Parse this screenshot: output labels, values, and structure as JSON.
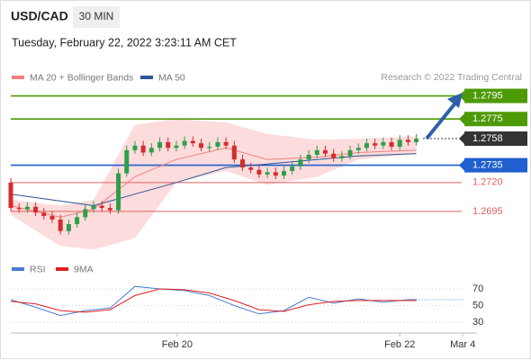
{
  "header": {
    "symbol": "USD/CAD",
    "timeframe": "30 MIN",
    "timestamp": "Tuesday, February 22, 2022 3:23:11 AM CET",
    "source": "Research © 2022 Trading Central"
  },
  "chart_data": [
    {
      "type": "candlestick",
      "up_color": "#2e9e4a",
      "down_color": "#d62c2c",
      "xlim": [
        0,
        56
      ],
      "xticks": [
        {
          "value": 20.1,
          "label": "Feb 20"
        },
        {
          "value": 47,
          "label": "Feb 22"
        },
        {
          "value": 54.6,
          "label": "Mar 4"
        }
      ],
      "ylim": [
        1.2656,
        1.2804
      ],
      "open": [
        1.272,
        1.2698,
        1.2697,
        1.2699,
        1.2694,
        1.2691,
        1.2688,
        1.2678,
        1.2684,
        1.269,
        1.2697,
        1.27,
        1.2698,
        1.2696,
        1.2728,
        1.2748,
        1.2752,
        1.2746,
        1.275,
        1.2755,
        1.275,
        1.2752,
        1.2756,
        1.2754,
        1.275,
        1.2751,
        1.2755,
        1.2752,
        1.274,
        1.2733,
        1.2731,
        1.2727,
        1.2729,
        1.2726,
        1.273,
        1.2734,
        1.274,
        1.2744,
        1.2748,
        1.2745,
        1.2741,
        1.2743,
        1.2748,
        1.275,
        1.2754,
        1.2752,
        1.2755,
        1.2751,
        1.2757,
        1.2755
      ],
      "high": [
        1.2724,
        1.2702,
        1.2703,
        1.2703,
        1.2698,
        1.2695,
        1.2692,
        1.2688,
        1.2694,
        1.2701,
        1.2704,
        1.2704,
        1.2702,
        1.2732,
        1.2752,
        1.2756,
        1.2756,
        1.2754,
        1.2759,
        1.2759,
        1.2756,
        1.276,
        1.276,
        1.2758,
        1.2755,
        1.2759,
        1.2759,
        1.2756,
        1.2744,
        1.2737,
        1.2735,
        1.2733,
        1.2733,
        1.2734,
        1.2738,
        1.2744,
        1.2748,
        1.2752,
        1.2752,
        1.2749,
        1.2747,
        1.2752,
        1.2754,
        1.2758,
        1.2758,
        1.2759,
        1.2759,
        1.2761,
        1.2761,
        1.2762
      ],
      "low": [
        1.2695,
        1.2694,
        1.2694,
        1.2691,
        1.2688,
        1.2685,
        1.2675,
        1.2675,
        1.2681,
        1.2687,
        1.2694,
        1.2695,
        1.2693,
        1.2693,
        1.2725,
        1.2745,
        1.2743,
        1.2743,
        1.2747,
        1.2747,
        1.2747,
        1.2749,
        1.2751,
        1.2747,
        1.2747,
        1.2748,
        1.2749,
        1.2737,
        1.273,
        1.2728,
        1.2724,
        1.2724,
        1.2723,
        1.2723,
        1.2727,
        1.2731,
        1.2737,
        1.2741,
        1.2742,
        1.2738,
        1.2738,
        1.274,
        1.2745,
        1.2747,
        1.2749,
        1.2749,
        1.2748,
        1.2748,
        1.2752,
        1.2752
      ],
      "close": [
        1.2698,
        1.2697,
        1.2699,
        1.2694,
        1.2691,
        1.2688,
        1.2678,
        1.2684,
        1.269,
        1.2697,
        1.27,
        1.2698,
        1.2696,
        1.2728,
        1.2748,
        1.2752,
        1.2746,
        1.275,
        1.2755,
        1.275,
        1.2752,
        1.2756,
        1.2754,
        1.275,
        1.2751,
        1.2755,
        1.2752,
        1.274,
        1.2733,
        1.2731,
        1.2727,
        1.2729,
        1.2726,
        1.273,
        1.2734,
        1.274,
        1.2744,
        1.2748,
        1.2745,
        1.2741,
        1.2743,
        1.2748,
        1.275,
        1.2754,
        1.2752,
        1.2755,
        1.2751,
        1.2757,
        1.2755,
        1.2758
      ],
      "band": {
        "color": "#fcdcdc",
        "x": [
          0,
          6,
          10,
          15,
          20,
          26,
          31,
          37,
          42,
          49
        ],
        "upper": [
          1.2705,
          1.27,
          1.2705,
          1.277,
          1.2775,
          1.2772,
          1.2762,
          1.2757,
          1.2758,
          1.276
        ],
        "lower": [
          1.2692,
          1.2665,
          1.2662,
          1.2672,
          1.272,
          1.273,
          1.2718,
          1.2725,
          1.274,
          1.2745
        ]
      },
      "series": [
        {
          "name": "MA 20 + Bollinger Bands",
          "color": "#f08080",
          "x": [
            0,
            6,
            10,
            15,
            20,
            26,
            31,
            37,
            42,
            49
          ],
          "values": [
            1.27,
            1.269,
            1.2697,
            1.2725,
            1.274,
            1.275,
            1.274,
            1.2742,
            1.2746,
            1.2748
          ]
        },
        {
          "name": "MA 50",
          "color": "#2f5597",
          "x": [
            0,
            6,
            10,
            15,
            20,
            26,
            31,
            37,
            42,
            49
          ],
          "values": [
            1.271,
            1.2704,
            1.27,
            1.271,
            1.272,
            1.2733,
            1.2736,
            1.274,
            1.2743,
            1.2745
          ]
        }
      ],
      "levels": [
        {
          "value": 1.2795,
          "label": "1.2795",
          "color": "#4e9a06",
          "box": true,
          "dotted": false
        },
        {
          "value": 1.2775,
          "label": "1.2775",
          "color": "#4e9a06",
          "box": true,
          "dotted": false
        },
        {
          "value": 1.2758,
          "label": "1.2758",
          "color": "#333333",
          "box": true,
          "dotted": true
        },
        {
          "value": 1.2735,
          "label": "1.2735",
          "color": "#1f5fcf",
          "box": true,
          "dotted": false
        },
        {
          "value": 1.272,
          "label": "1.2720",
          "color": "#e06060",
          "box": false,
          "dotted": false
        },
        {
          "value": 1.2695,
          "label": "1.2695",
          "color": "#e06060",
          "box": false,
          "dotted": false
        }
      ]
    },
    {
      "type": "line",
      "xlim": [
        0,
        56
      ],
      "ylim": [
        20,
        80
      ],
      "yticks": [
        70,
        50,
        30
      ],
      "series": [
        {
          "name": "RSI",
          "color": "#4a7bd0",
          "x": [
            0,
            3,
            6,
            9,
            12,
            15,
            18,
            21,
            24,
            27,
            30,
            33,
            36,
            39,
            42,
            45,
            48,
            49
          ],
          "values": [
            57,
            48,
            38,
            44,
            47,
            73,
            70,
            68,
            62,
            50,
            40,
            44,
            60,
            53,
            58,
            54,
            57,
            57
          ]
        },
        {
          "name": "9MA",
          "color": "#e02020",
          "x": [
            0,
            3,
            6,
            9,
            12,
            15,
            18,
            21,
            24,
            27,
            30,
            33,
            36,
            39,
            42,
            45,
            48,
            49
          ],
          "values": [
            55,
            52,
            44,
            42,
            45,
            62,
            70,
            69,
            65,
            56,
            45,
            43,
            51,
            55,
            56,
            56,
            56,
            56
          ]
        }
      ]
    }
  ]
}
